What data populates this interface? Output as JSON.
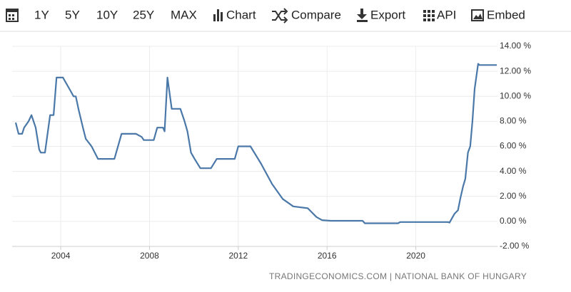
{
  "toolbar": [
    "1Y",
    "5Y",
    "10Y",
    "25Y",
    "MAX",
    "Chart",
    "Compare",
    "Export",
    "API",
    "Embed"
  ],
  "chart_data": {
    "type": "line",
    "color": "#4a78a8",
    "grid": true,
    "source": "TRADINGECONOMICS.COM | NATIONAL BANK OF HUNGARY",
    "x": [
      2001.97,
      2002.1,
      2002.26,
      2002.35,
      2002.55,
      2002.68,
      2002.87,
      2003.03,
      2003.1,
      2003.29,
      2003.52,
      2003.68,
      2003.81,
      2004.1,
      2004.42,
      2004.58,
      2004.68,
      2004.81,
      2005.0,
      2005.13,
      2005.39,
      2005.68,
      2006.42,
      2006.74,
      2007.39,
      2007.65,
      2007.74,
      2008.19,
      2008.35,
      2008.61,
      2008.68,
      2008.81,
      2009.0,
      2009.39,
      2009.58,
      2009.71,
      2009.87,
      2010.03,
      2010.29,
      2010.77,
      2011.03,
      2011.84,
      2012.0,
      2012.55,
      2013.03,
      2013.52,
      2014.0,
      2014.48,
      2015.13,
      2015.52,
      2015.77,
      2016.16,
      2017.6,
      2017.7,
      2019.2,
      2019.3,
      2021.45,
      2021.52,
      2021.74,
      2021.9,
      2022.0,
      2022.13,
      2022.23,
      2022.35,
      2022.45,
      2022.55,
      2022.65,
      2022.81,
      2022.87,
      2023.65
    ],
    "values": [
      7.9,
      7.0,
      7.0,
      7.5,
      8.0,
      8.5,
      7.5,
      5.75,
      5.5,
      5.5,
      8.5,
      8.5,
      11.5,
      11.5,
      10.5,
      10.0,
      10.0,
      8.9,
      7.5,
      6.6,
      6.0,
      5.0,
      5.0,
      7.0,
      7.0,
      6.75,
      6.5,
      6.5,
      7.5,
      7.5,
      7.2,
      11.5,
      9.0,
      9.0,
      8.0,
      7.2,
      5.5,
      5.0,
      4.25,
      4.25,
      5.0,
      5.0,
      6.0,
      6.0,
      4.6,
      3.0,
      1.8,
      1.2,
      1.05,
      0.35,
      0.1,
      0.05,
      0.05,
      -0.15,
      -0.15,
      -0.05,
      -0.05,
      -0.1,
      0.6,
      0.9,
      1.8,
      2.8,
      3.4,
      5.5,
      6.0,
      8.0,
      10.6,
      12.6,
      12.5,
      12.5
    ],
    "xlim": [
      2001.81,
      2023.68
    ],
    "xticks": [
      2004,
      2008,
      2012,
      2016,
      2020
    ],
    "ylim": [
      -2,
      14
    ],
    "yticks": [
      {
        "value": 14,
        "label": "14.00 %"
      },
      {
        "value": 12,
        "label": "12.00 %"
      },
      {
        "value": 10,
        "label": "10.00 %"
      },
      {
        "value": 8,
        "label": "8.00 %"
      },
      {
        "value": 6,
        "label": "6.00 %"
      },
      {
        "value": 4,
        "label": "4.00 %"
      },
      {
        "value": 2,
        "label": "2.00 %"
      },
      {
        "value": 0,
        "label": "0.00 %"
      },
      {
        "value": -2,
        "label": "-2.00 %"
      }
    ]
  }
}
